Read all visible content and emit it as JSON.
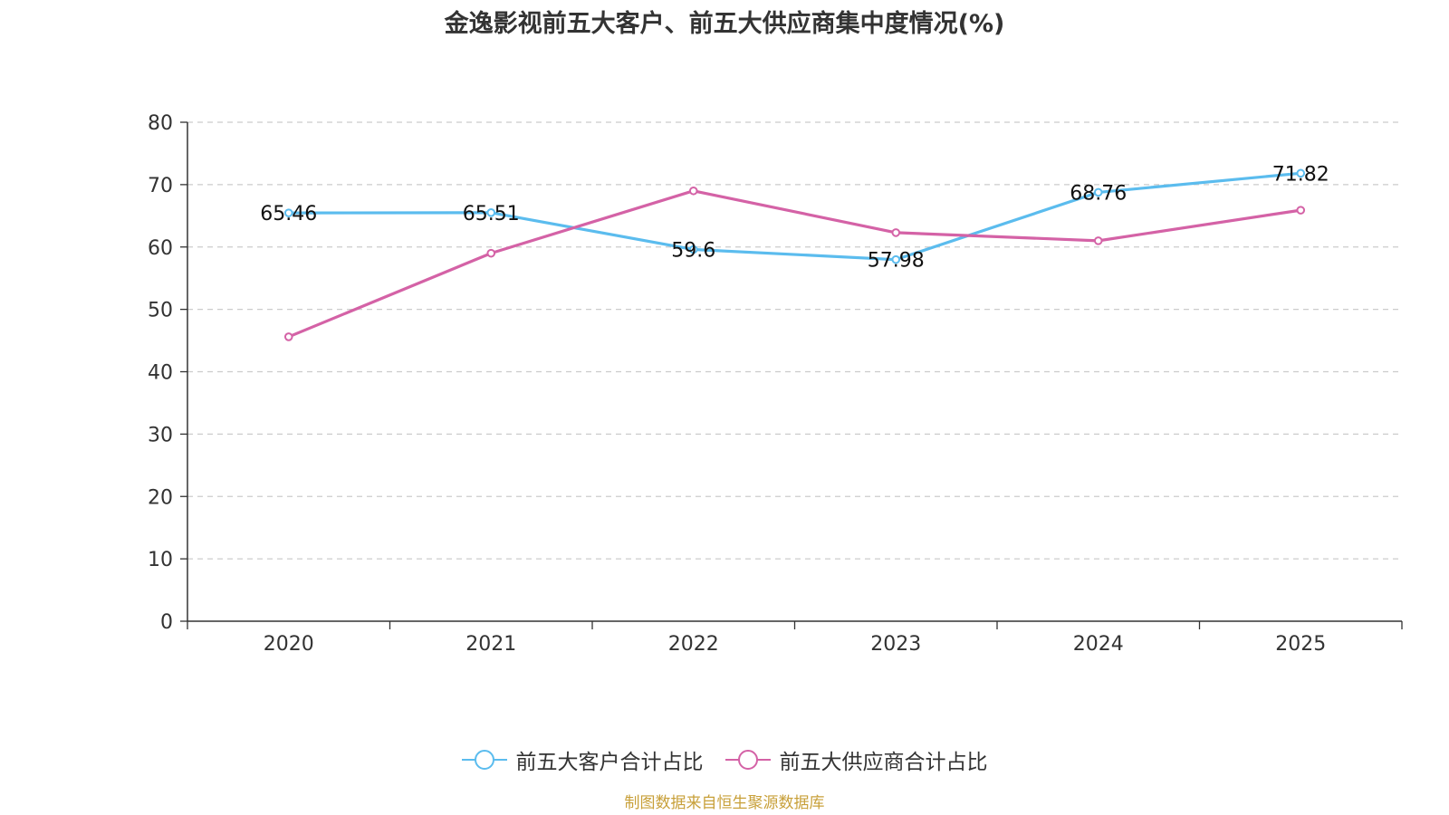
{
  "chart_data": {
    "type": "line",
    "title": "金逸影视前五大客户、前五大供应商集中度情况(%)",
    "categories": [
      "2020",
      "2021",
      "2022",
      "2023",
      "2024",
      "2025"
    ],
    "ylim": [
      0,
      80
    ],
    "yticks": [
      0,
      10,
      20,
      30,
      40,
      50,
      60,
      70,
      80
    ],
    "grid": true,
    "legend_position": "bottom",
    "series": [
      {
        "name": "前五大客户合计占比",
        "color": "#5bbcee",
        "show_labels": true,
        "values": [
          65.46,
          65.51,
          59.6,
          57.98,
          68.76,
          71.82
        ]
      },
      {
        "name": "前五大供应商合计占比",
        "color": "#d462a6",
        "show_labels": false,
        "values": [
          45.6,
          59.0,
          69.0,
          62.3,
          61.0,
          65.9
        ]
      }
    ],
    "source": "制图数据来自恒生聚源数据库"
  }
}
